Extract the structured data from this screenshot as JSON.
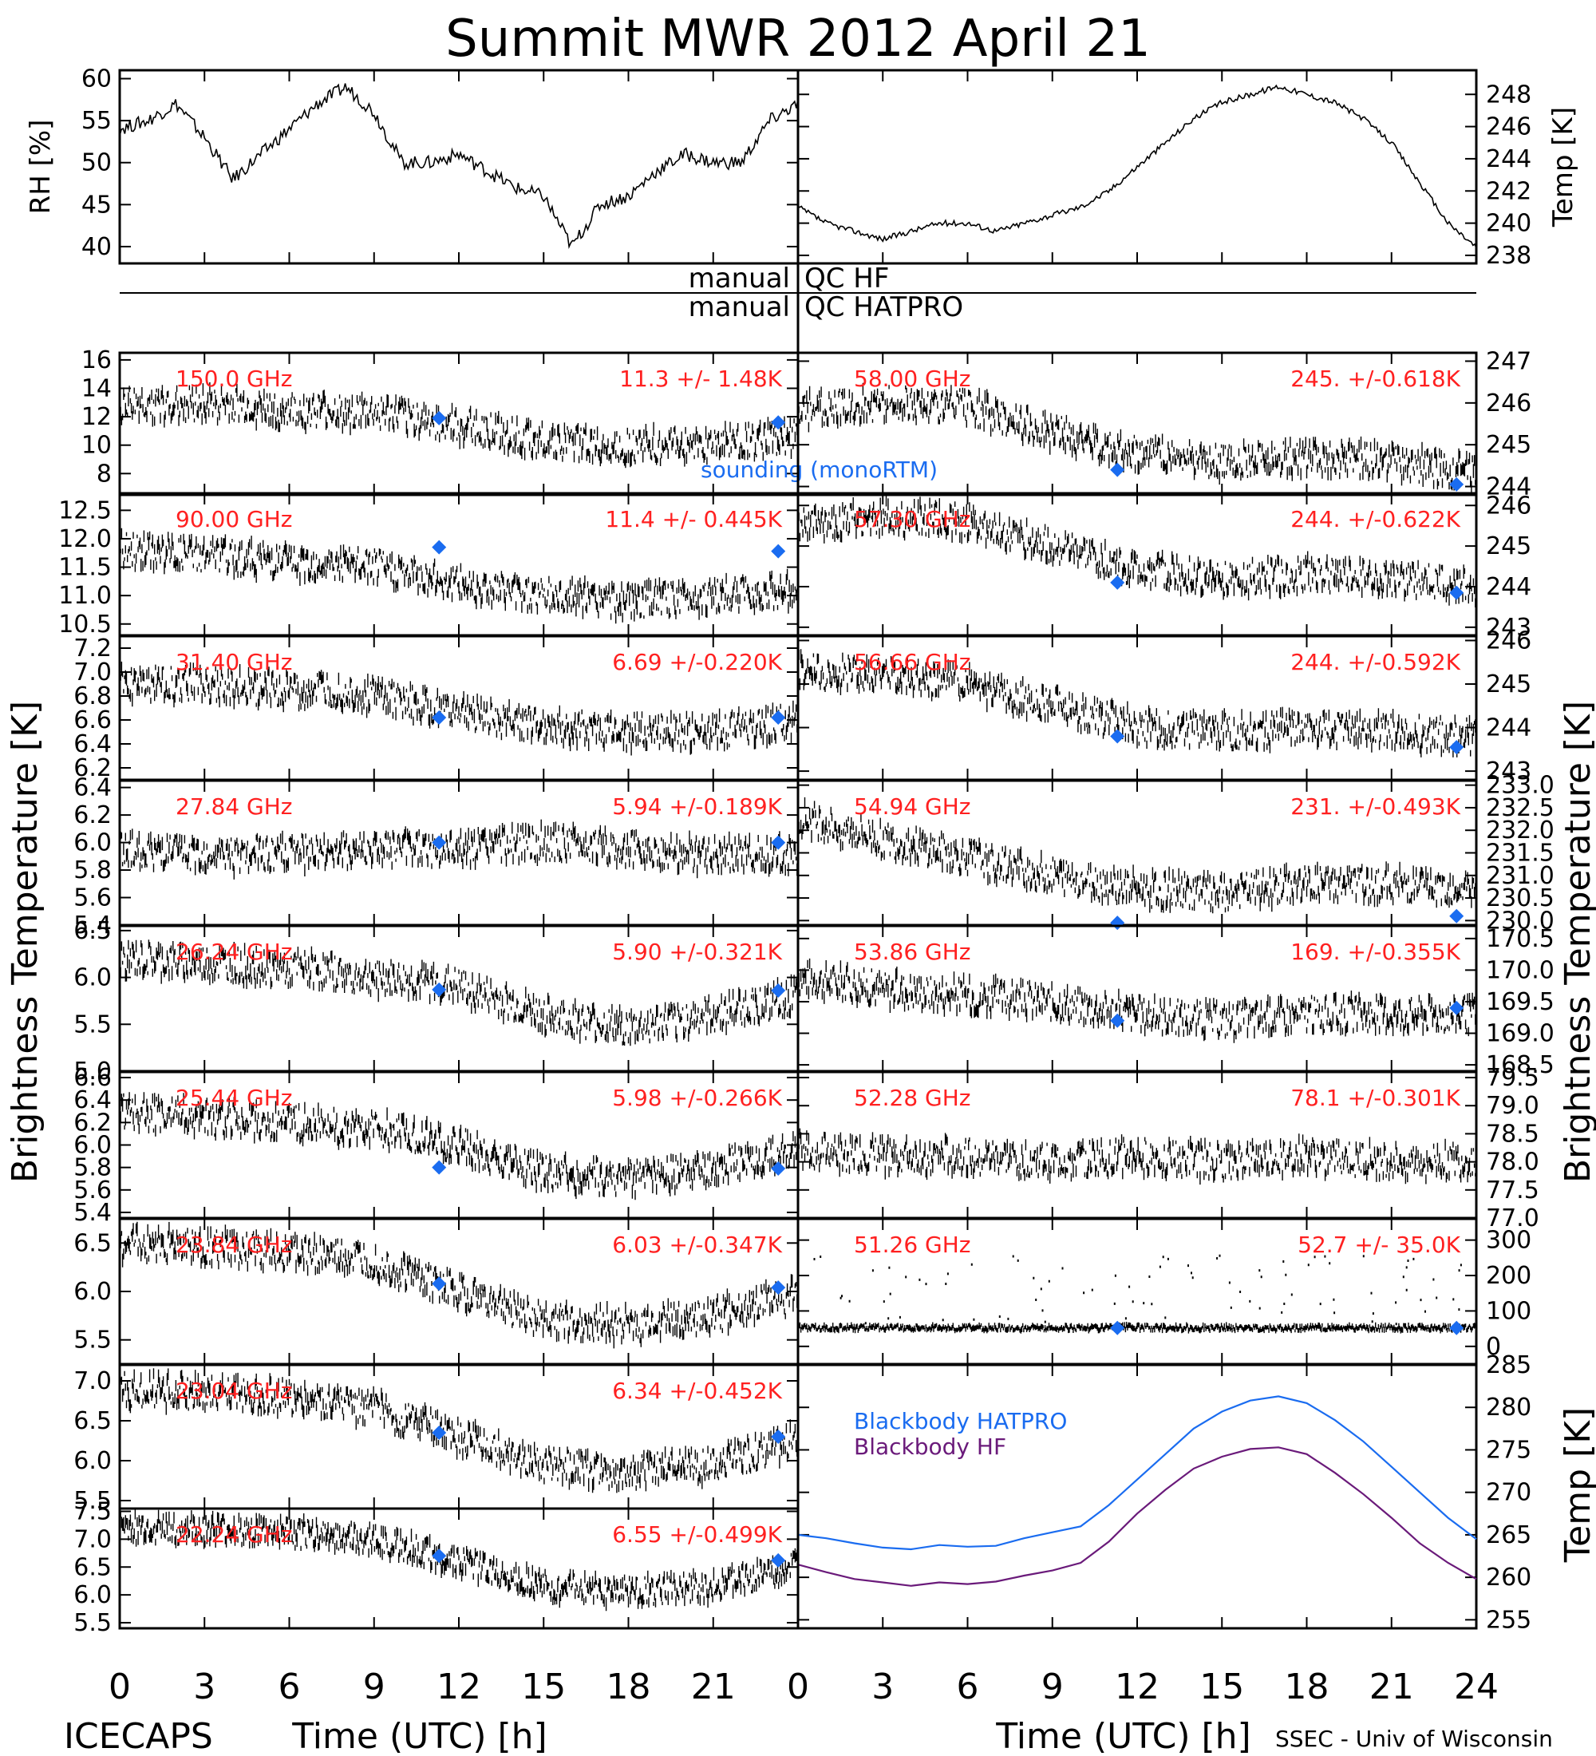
{
  "title": "Summit MWR 2012 April 21",
  "footer_left": "ICECAPS",
  "footer_right": "SSEC - Univ of Wisconsin",
  "y_label_left": "Brightness Temperature [K]",
  "y_label_right": "Brightness Temperature [K]",
  "x_label": "Time (UTC) [h]",
  "x_ticks": [
    "0",
    "3",
    "6",
    "9",
    "12",
    "15",
    "18",
    "21",
    "24"
  ],
  "x_ticks_left": [
    "0",
    "3",
    "6",
    "9",
    "12",
    "15",
    "18",
    "21"
  ],
  "qc_label_hf_left": "manual",
  "qc_label_hf_right": "QC HF",
  "qc_label_hatpro_left": "manual",
  "qc_label_hatpro_right": "QC HATPRO",
  "legend_sounding": "sounding (monoRTM)",
  "colors": {
    "frequency_text": "#ff2020",
    "sounding": "#1a6cf0",
    "bb_hatpro": "#1a6cf0",
    "bb_hf": "#6a1a7a",
    "data": "#000000"
  },
  "chart_data": [
    {
      "id": "rh",
      "type": "line",
      "ylabel": "RH [%]",
      "ylim": [
        38,
        61
      ],
      "yticks": [
        "40",
        "45",
        "50",
        "55",
        "60"
      ],
      "x": [
        0,
        1,
        2,
        3,
        4,
        5,
        6,
        7,
        8,
        9,
        10,
        11,
        12,
        13,
        14,
        15,
        16,
        17,
        18,
        19,
        20,
        21,
        22,
        23,
        24
      ],
      "values": [
        54,
        55,
        57,
        53,
        48,
        51,
        54,
        57,
        59,
        56,
        50,
        50,
        51,
        49,
        47,
        46,
        40,
        45,
        46,
        49,
        51,
        50,
        50,
        55,
        57
      ]
    },
    {
      "id": "temp",
      "type": "line",
      "ylabel": "Temp [K]",
      "ylim": [
        237.5,
        249.5
      ],
      "yticks": [
        "238",
        "240",
        "242",
        "244",
        "246",
        "248"
      ],
      "x": [
        0,
        1,
        2,
        3,
        4,
        5,
        6,
        7,
        8,
        9,
        10,
        11,
        12,
        13,
        14,
        15,
        16,
        17,
        18,
        19,
        20,
        21,
        22,
        23,
        24
      ],
      "values": [
        241,
        240,
        239.5,
        239,
        239.5,
        240,
        240,
        239.5,
        240,
        240.5,
        241,
        242,
        243.5,
        245,
        246.5,
        247.5,
        248,
        248.5,
        248,
        247.5,
        246.5,
        245,
        242.5,
        240,
        238.5
      ]
    },
    {
      "id": "150.0",
      "type": "scatter",
      "freq": "150.0 GHz",
      "stats": "11.3 +/- 1.48K",
      "ylim": [
        6.5,
        16.5
      ],
      "yticks": [
        "8",
        "10",
        "12",
        "14",
        "16"
      ],
      "x": [
        0,
        3,
        6,
        9,
        12,
        15,
        18,
        21,
        24
      ],
      "values": [
        12.8,
        12.9,
        12.4,
        12.2,
        11.4,
        10.3,
        9.9,
        10.1,
        10.6
      ],
      "sounding_x": [
        11.3,
        23.3
      ],
      "sounding_y": [
        11.9,
        11.6
      ]
    },
    {
      "id": "90.00",
      "type": "scatter",
      "freq": "90.00 GHz",
      "stats": "11.4 +/- 0.445K",
      "ylim": [
        10.3,
        12.8
      ],
      "yticks": [
        "10.5",
        "11.0",
        "11.5",
        "12.0",
        "12.5"
      ],
      "x": [
        0,
        3,
        6,
        9,
        12,
        15,
        18,
        21,
        24
      ],
      "values": [
        11.8,
        11.7,
        11.6,
        11.5,
        11.2,
        11.0,
        10.9,
        11.0,
        11.1
      ],
      "sounding_x": [
        11.3,
        23.3
      ],
      "sounding_y": [
        11.85,
        11.78
      ]
    },
    {
      "id": "31.40",
      "type": "scatter",
      "freq": "31.40 GHz",
      "stats": "6.69 +/-0.220K",
      "ylim": [
        6.1,
        7.3
      ],
      "yticks": [
        "6.2",
        "6.4",
        "6.6",
        "6.8",
        "7.0",
        "7.2"
      ],
      "x": [
        0,
        3,
        6,
        9,
        12,
        15,
        18,
        21,
        24
      ],
      "values": [
        6.9,
        6.9,
        6.85,
        6.8,
        6.65,
        6.55,
        6.5,
        6.5,
        6.6
      ],
      "sounding_x": [
        11.3,
        23.3
      ],
      "sounding_y": [
        6.62,
        6.62
      ]
    },
    {
      "id": "27.84",
      "type": "scatter",
      "freq": "27.84 GHz",
      "stats": "5.94 +/-0.189K",
      "ylim": [
        5.4,
        6.45
      ],
      "yticks": [
        "5.4",
        "5.6",
        "5.8",
        "6.0",
        "6.2",
        "6.4"
      ],
      "x": [
        0,
        3,
        6,
        9,
        12,
        15,
        18,
        21,
        24
      ],
      "values": [
        5.95,
        5.9,
        5.92,
        5.95,
        5.95,
        6.0,
        5.95,
        5.9,
        5.92
      ],
      "sounding_x": [
        11.3,
        23.3
      ],
      "sounding_y": [
        6.0,
        6.0
      ]
    },
    {
      "id": "26.24",
      "type": "scatter",
      "freq": "26.24 GHz",
      "stats": "5.90 +/-0.321K",
      "ylim": [
        5.0,
        6.55
      ],
      "yticks": [
        "5.0",
        "5.5",
        "6.0",
        "6.5"
      ],
      "x": [
        0,
        3,
        6,
        9,
        12,
        15,
        18,
        21,
        24
      ],
      "values": [
        6.2,
        6.15,
        6.1,
        6.0,
        5.9,
        5.6,
        5.45,
        5.6,
        5.8
      ],
      "sounding_x": [
        11.3,
        23.3
      ],
      "sounding_y": [
        5.87,
        5.86
      ]
    },
    {
      "id": "25.44",
      "type": "scatter",
      "freq": "25.44 GHz",
      "stats": "5.98 +/-0.266K",
      "ylim": [
        5.35,
        6.65
      ],
      "yticks": [
        "5.4",
        "5.6",
        "5.8",
        "6.0",
        "6.2",
        "6.4",
        "6.6"
      ],
      "x": [
        0,
        3,
        6,
        9,
        12,
        15,
        18,
        21,
        24
      ],
      "values": [
        6.3,
        6.25,
        6.2,
        6.15,
        6.0,
        5.75,
        5.7,
        5.8,
        5.95
      ],
      "sounding_x": [
        11.3,
        23.3
      ],
      "sounding_y": [
        5.8,
        5.79
      ]
    },
    {
      "id": "23.84",
      "type": "scatter",
      "freq": "23.84 GHz",
      "stats": "6.03 +/-0.347K",
      "ylim": [
        5.25,
        6.75
      ],
      "yticks": [
        "5.5",
        "6.0",
        "6.5"
      ],
      "x": [
        0,
        3,
        6,
        9,
        12,
        15,
        18,
        21,
        24
      ],
      "values": [
        6.5,
        6.45,
        6.4,
        6.3,
        6.0,
        5.7,
        5.65,
        5.75,
        5.95
      ],
      "sounding_x": [
        11.3,
        23.3
      ],
      "sounding_y": [
        6.08,
        6.04
      ]
    },
    {
      "id": "23.04",
      "type": "scatter",
      "freq": "23.04 GHz",
      "stats": "6.34 +/-0.452K",
      "ylim": [
        5.4,
        7.2
      ],
      "yticks": [
        "5.5",
        "6.0",
        "6.5",
        "7.0"
      ],
      "x": [
        0,
        3,
        6,
        9,
        12,
        15,
        18,
        21,
        24
      ],
      "values": [
        6.9,
        6.85,
        6.8,
        6.65,
        6.3,
        5.95,
        5.85,
        5.95,
        6.25
      ],
      "sounding_x": [
        11.3,
        23.3
      ],
      "sounding_y": [
        6.35,
        6.3
      ]
    },
    {
      "id": "22.24",
      "type": "scatter",
      "freq": "22.24 GHz",
      "stats": "6.55 +/-0.499K",
      "ylim": [
        5.4,
        7.55
      ],
      "yticks": [
        "5.5",
        "6.0",
        "6.5",
        "7.0",
        "7.5"
      ],
      "x": [
        0,
        3,
        6,
        9,
        12,
        15,
        18,
        21,
        24
      ],
      "values": [
        7.2,
        7.15,
        7.1,
        7.0,
        6.6,
        6.15,
        6.05,
        6.15,
        6.5
      ],
      "sounding_x": [
        11.3,
        23.3
      ],
      "sounding_y": [
        6.7,
        6.62
      ]
    },
    {
      "id": "58.00",
      "type": "scatter",
      "freq": "58.00 GHz",
      "stats": "245. +/-0.618K",
      "ylim": [
        243.8,
        247.2
      ],
      "yticks": [
        "244",
        "245",
        "246",
        "247"
      ],
      "x": [
        0,
        3,
        6,
        9,
        12,
        15,
        18,
        21,
        24
      ],
      "values": [
        245.8,
        246.0,
        245.9,
        245.3,
        244.8,
        244.6,
        244.7,
        244.6,
        244.3
      ],
      "sounding_x": [
        11.3,
        23.3
      ],
      "sounding_y": [
        244.4,
        244.05
      ]
    },
    {
      "id": "57.30",
      "type": "scatter",
      "freq": "57.30 GHz",
      "stats": "244. +/-0.622K",
      "ylim": [
        242.8,
        246.3
      ],
      "yticks": [
        "243",
        "244",
        "245",
        "246"
      ],
      "x": [
        0,
        3,
        6,
        9,
        12,
        15,
        18,
        21,
        24
      ],
      "values": [
        245.5,
        245.7,
        245.6,
        245.0,
        244.4,
        244.2,
        244.3,
        244.2,
        244.0
      ],
      "sounding_x": [
        11.3,
        23.3
      ],
      "sounding_y": [
        244.1,
        243.85
      ]
    },
    {
      "id": "56.66",
      "type": "scatter",
      "freq": "56.66 GHz",
      "stats": "244. +/-0.592K",
      "ylim": [
        242.8,
        246.1
      ],
      "yticks": [
        "243",
        "244",
        "245",
        "246"
      ],
      "x": [
        0,
        3,
        6,
        9,
        12,
        15,
        18,
        21,
        24
      ],
      "values": [
        245.3,
        245.2,
        245.0,
        244.5,
        244.0,
        243.9,
        244.0,
        243.9,
        243.8
      ],
      "sounding_x": [
        11.3,
        23.3
      ],
      "sounding_y": [
        243.8,
        243.55
      ]
    },
    {
      "id": "54.94",
      "type": "scatter",
      "freq": "54.94 GHz",
      "stats": "231. +/-0.493K",
      "ylim": [
        229.9,
        233.1
      ],
      "yticks": [
        "230.0",
        "230.5",
        "231.0",
        "231.5",
        "232.0",
        "232.5",
        "233.0"
      ],
      "x": [
        0,
        3,
        6,
        9,
        12,
        15,
        18,
        21,
        24
      ],
      "values": [
        232.3,
        231.8,
        231.4,
        231.0,
        230.7,
        230.6,
        230.8,
        230.8,
        230.7
      ],
      "sounding_x": [
        11.3,
        23.3
      ],
      "sounding_y": [
        229.95,
        230.1
      ]
    },
    {
      "id": "53.86",
      "type": "scatter",
      "freq": "53.86 GHz",
      "stats": "169. +/-0.355K",
      "ylim": [
        168.4,
        170.7
      ],
      "yticks": [
        "168.5",
        "169.0",
        "169.5",
        "170.0",
        "170.5"
      ],
      "x": [
        0,
        3,
        6,
        9,
        12,
        15,
        18,
        21,
        24
      ],
      "values": [
        169.9,
        169.7,
        169.6,
        169.5,
        169.3,
        169.2,
        169.3,
        169.3,
        169.3
      ],
      "sounding_x": [
        11.3,
        23.3
      ],
      "sounding_y": [
        169.2,
        169.4
      ]
    },
    {
      "id": "52.28",
      "type": "scatter",
      "freq": "52.28 GHz",
      "stats": "78.1 +/-0.301K",
      "ylim": [
        77.0,
        79.6
      ],
      "yticks": [
        "77.0",
        "77.5",
        "78.0",
        "78.5",
        "79.0",
        "79.5"
      ],
      "x": [
        0,
        3,
        6,
        9,
        12,
        15,
        18,
        21,
        24
      ],
      "values": [
        78.2,
        78.1,
        78.1,
        78.0,
        78.1,
        78.0,
        78.1,
        78.0,
        78.0
      ],
      "sounding_x": [],
      "sounding_y": []
    },
    {
      "id": "51.26",
      "type": "scatter",
      "freq": "51.26 GHz",
      "stats": "52.7 +/- 35.0K",
      "ylim": [
        -50,
        360
      ],
      "yticks": [
        "0",
        "100",
        "200",
        "300"
      ],
      "x": [
        0,
        3,
        6,
        9,
        12,
        15,
        18,
        21,
        24
      ],
      "values": [
        52,
        53,
        52,
        52,
        53,
        52,
        52,
        53,
        52
      ],
      "sounding_x": [
        11.3,
        23.3
      ],
      "sounding_y": [
        52,
        52
      ]
    },
    {
      "id": "blackbody",
      "type": "line",
      "ylabel": "Temp [K]",
      "ylim": [
        254,
        285
      ],
      "yticks": [
        "255",
        "260",
        "265",
        "270",
        "275",
        "280",
        "285"
      ],
      "x": [
        0,
        1,
        2,
        3,
        4,
        5,
        6,
        7,
        8,
        9,
        10,
        11,
        12,
        13,
        14,
        15,
        16,
        17,
        18,
        19,
        20,
        21,
        22,
        23,
        24
      ],
      "series": [
        {
          "name": "Blackbody HATPRO",
          "values": [
            265,
            264.6,
            264,
            263.5,
            263.3,
            263.8,
            263.6,
            263.7,
            264.6,
            265.3,
            266,
            268.5,
            271.5,
            274.5,
            277.5,
            279.5,
            280.8,
            281.3,
            280.5,
            278.5,
            276,
            273,
            270,
            267,
            264.5
          ]
        },
        {
          "name": "Blackbody HF",
          "values": [
            261.5,
            260.6,
            259.8,
            259.4,
            259,
            259.4,
            259.2,
            259.5,
            260.2,
            260.8,
            261.7,
            264.2,
            267.5,
            270.3,
            272.8,
            274.2,
            275.1,
            275.3,
            274.5,
            272.3,
            269.8,
            267,
            264,
            261.7,
            259.8
          ]
        }
      ]
    }
  ]
}
